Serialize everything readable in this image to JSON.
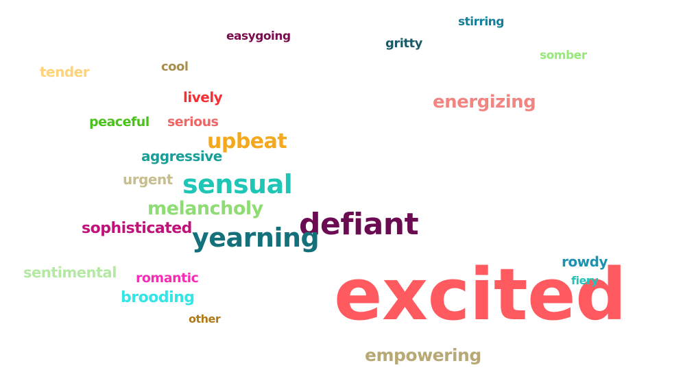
{
  "words": [
    {
      "text": "excited",
      "color": "#ff5a5f"
    },
    {
      "text": "defiant",
      "color": "#6b0b52"
    },
    {
      "text": "yearning",
      "color": "#14707a"
    },
    {
      "text": "sensual",
      "color": "#1fc5b5"
    },
    {
      "text": "energizing",
      "color": "#f28482"
    },
    {
      "text": "upbeat",
      "color": "#f4a81d"
    },
    {
      "text": "melancholy",
      "color": "#8edc73"
    },
    {
      "text": "empowering",
      "color": "#b7a875"
    },
    {
      "text": "sophisticated",
      "color": "#c1127a"
    },
    {
      "text": "brooding",
      "color": "#33e5e5"
    },
    {
      "text": "sentimental",
      "color": "#b5e8a4"
    },
    {
      "text": "aggressive",
      "color": "#1a9e98"
    },
    {
      "text": "romantic",
      "color": "#f62db4"
    },
    {
      "text": "rowdy",
      "color": "#1b93b0"
    },
    {
      "text": "urgent",
      "color": "#c8bd8c"
    },
    {
      "text": "lively",
      "color": "#f72f35"
    },
    {
      "text": "serious",
      "color": "#f26565"
    },
    {
      "text": "peaceful",
      "color": "#49c31a"
    },
    {
      "text": "tender",
      "color": "#ffd37a"
    },
    {
      "text": "easygoing",
      "color": "#7a0b4f"
    },
    {
      "text": "gritty",
      "color": "#1a5a66"
    },
    {
      "text": "stirring",
      "color": "#137e98"
    },
    {
      "text": "somber",
      "color": "#96ea7a"
    },
    {
      "text": "cool",
      "color": "#a88f4f"
    },
    {
      "text": "other",
      "color": "#b07a1a"
    },
    {
      "text": "fiery",
      "color": "#22c3b8"
    }
  ]
}
